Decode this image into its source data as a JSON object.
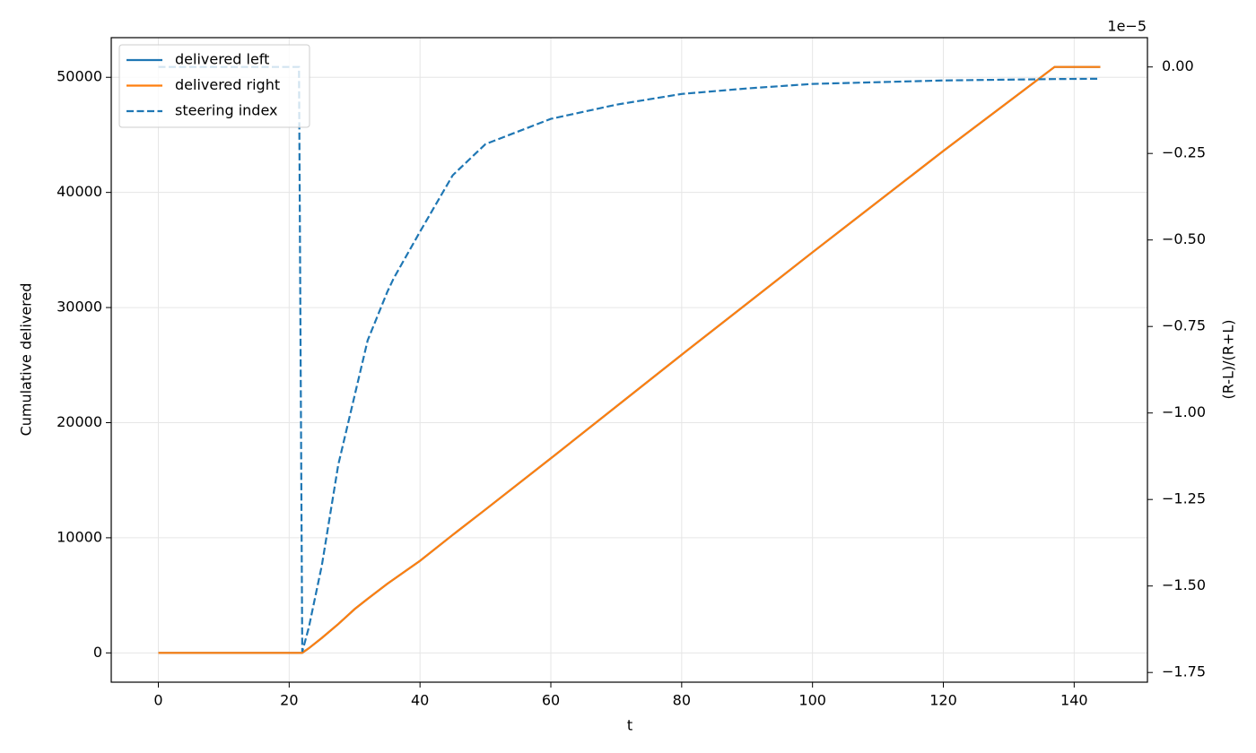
{
  "chart_data": {
    "type": "line",
    "x_label": "t",
    "y_label": "Cumulative delivered",
    "y2_label": "(R-L)/(R+L)",
    "y2_offset_label": "1e−5",
    "x": [
      0,
      21.5,
      22,
      23,
      25,
      27.5,
      30,
      32,
      35,
      36,
      40,
      45,
      50,
      60,
      70,
      80,
      90,
      100,
      120,
      137,
      144
    ],
    "series": [
      {
        "name": "delivered left",
        "color": "#1f77b4",
        "dash": "solid",
        "axis": "y",
        "values": [
          0,
          0,
          0,
          400,
          1300,
          2500,
          3800,
          4700,
          6000,
          6400,
          8000,
          10250,
          12450,
          16900,
          21400,
          25900,
          30350,
          34800,
          43600,
          50900,
          50900
        ]
      },
      {
        "name": "delivered right",
        "color": "#ff7f0e",
        "dash": "solid",
        "axis": "y",
        "values": [
          0,
          0,
          0,
          400,
          1300,
          2500,
          3800,
          4700,
          6000,
          6400,
          8000,
          10250,
          12450,
          16900,
          21400,
          25900,
          30350,
          34800,
          43600,
          50900,
          50900
        ]
      },
      {
        "name": "steering index",
        "color": "#1f77b4",
        "dash": "dashed",
        "axis": "y2",
        "values": [
          0,
          0,
          -1.69,
          -1.62,
          -1.44,
          -1.15,
          -0.95,
          -0.79,
          -0.65,
          -0.61,
          -0.476,
          -0.313,
          -0.223,
          -0.15,
          -0.109,
          -0.078,
          -0.062,
          -0.049,
          -0.039,
          -0.035,
          -0.034
        ]
      }
    ],
    "xlim": [
      -7.2,
      151.2
    ],
    "xticks": [
      0,
      20,
      40,
      60,
      80,
      100,
      120,
      140
    ],
    "ylim": [
      -2545,
      53445
    ],
    "yticks": [
      0,
      10000,
      20000,
      30000,
      40000,
      50000
    ],
    "y2lim": [
      -1.778,
      0.0847
    ],
    "y2ticks": [
      {
        "value": 0,
        "label": "0.00"
      },
      {
        "value": -0.25,
        "label": "−0.25"
      },
      {
        "value": -0.5,
        "label": "−0.50"
      },
      {
        "value": -0.75,
        "label": "−0.75"
      },
      {
        "value": -1,
        "label": "−1.00"
      },
      {
        "value": -1.25,
        "label": "−1.25"
      },
      {
        "value": -1.5,
        "label": "−1.50"
      },
      {
        "value": -1.75,
        "label": "−1.75"
      }
    ],
    "grid": true,
    "legend": "upper-left"
  }
}
